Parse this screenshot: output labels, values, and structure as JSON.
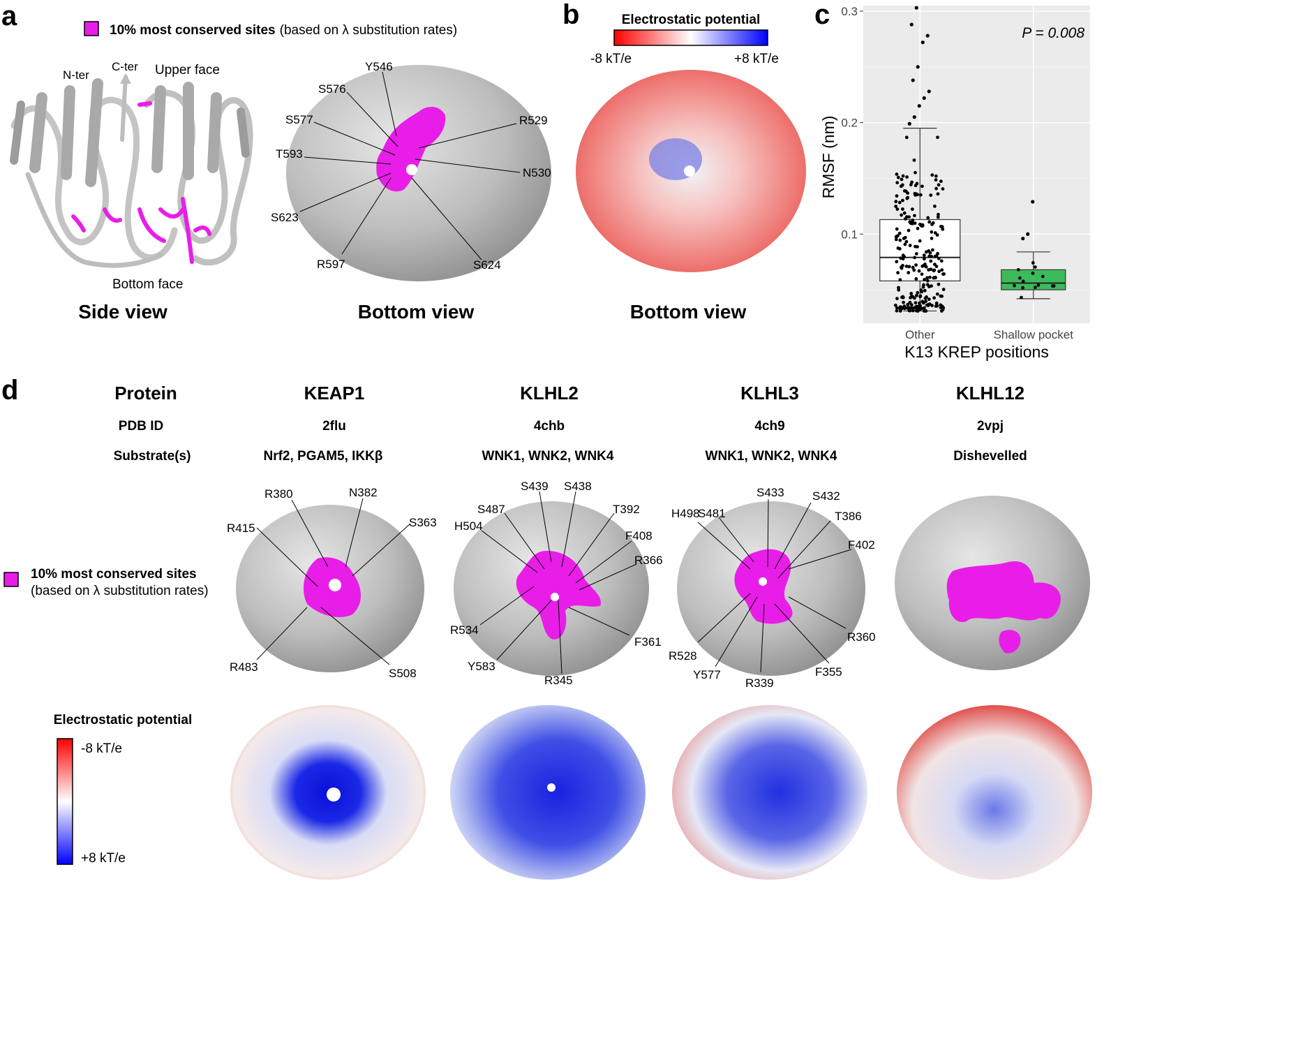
{
  "legend_conserved": {
    "bold": "10% most conserved sites",
    "normal": "(based on λ substitution rates)"
  },
  "panel_letters": {
    "a": "a",
    "b": "b",
    "c": "c",
    "d": "d"
  },
  "panel_a": {
    "side_labels": {
      "nter": "N-ter",
      "cter": "C-ter",
      "upper": "Upper face",
      "bottom": "Bottom face"
    },
    "side_title": "Side view",
    "bottom_title": "Bottom view",
    "residues": [
      "Y546",
      "S576",
      "S577",
      "T593",
      "S623",
      "R597",
      "R529",
      "N530",
      "S624"
    ]
  },
  "panel_b": {
    "title": "Electrostatic potential",
    "min_label": "-8 kT/e",
    "max_label": "+8 kT/e",
    "bottom_title": "Bottom view"
  },
  "chart_data": {
    "type": "box",
    "xlabel": "K13 KREP positions",
    "ylabel": "RMSF (nm)",
    "annotation": "P = 0.008",
    "ylim": [
      0.02,
      0.305
    ],
    "yticks": [
      "0.1",
      "0.2",
      "0.3"
    ],
    "ytick_values": [
      0.1,
      0.2,
      0.3
    ],
    "categories": [
      "Other",
      "Shallow pocket"
    ],
    "boxes": [
      {
        "category": "Other",
        "whisker_low": 0.031,
        "q1": 0.058,
        "median": 0.079,
        "q3": 0.113,
        "whisker_high": 0.195,
        "outliers": [
          0.199,
          0.205,
          0.215,
          0.222,
          0.228,
          0.238,
          0.25,
          0.272,
          0.278,
          0.288,
          0.303
        ],
        "color": "#ffffff"
      },
      {
        "category": "Shallow pocket",
        "whisker_low": 0.042,
        "q1": 0.05,
        "median": 0.056,
        "q3": 0.068,
        "whisker_high": 0.084,
        "outliers": [
          0.096,
          0.1,
          0.129
        ],
        "color": "#3dbb5b"
      }
    ]
  },
  "panel_d": {
    "row_headers": {
      "protein": "Protein",
      "pdb": "PDB ID",
      "substrates": "Substrate(s)"
    },
    "proteins": [
      {
        "name": "KEAP1",
        "pdb": "2flu",
        "substrates": "Nrf2, PGAM5, IKKβ",
        "residues": [
          "R380",
          "N382",
          "S363",
          "R415",
          "R483",
          "S508"
        ]
      },
      {
        "name": "KLHL2",
        "pdb": "4chb",
        "substrates": "WNK1, WNK2, WNK4",
        "residues": [
          "S439",
          "S438",
          "S487",
          "T392",
          "H504",
          "F408",
          "R366",
          "R534",
          "F361",
          "Y583",
          "R345"
        ]
      },
      {
        "name": "KLHL3",
        "pdb": "4ch9",
        "substrates": "WNK1, WNK2, WNK4",
        "residues": [
          "S481",
          "S433",
          "S432",
          "H498",
          "T386",
          "F402",
          "R360",
          "R528",
          "F355",
          "Y577",
          "R339"
        ]
      },
      {
        "name": "KLHL12",
        "pdb": "2vpj",
        "substrates": "Dishevelled",
        "residues": []
      }
    ],
    "legend_conserved": {
      "bold": "10% most conserved sites",
      "normal": "(based on λ substitution rates)"
    },
    "electro_title": "Electrostatic potential",
    "min_label": "-8 kT/e",
    "max_label": "+8 kT/e"
  },
  "colors": {
    "conserved": "#e81ee8",
    "neg": "#e8322e",
    "pos": "#1a1ae6",
    "surface": "#b8b8b8",
    "box_green": "#3dbb5b"
  }
}
